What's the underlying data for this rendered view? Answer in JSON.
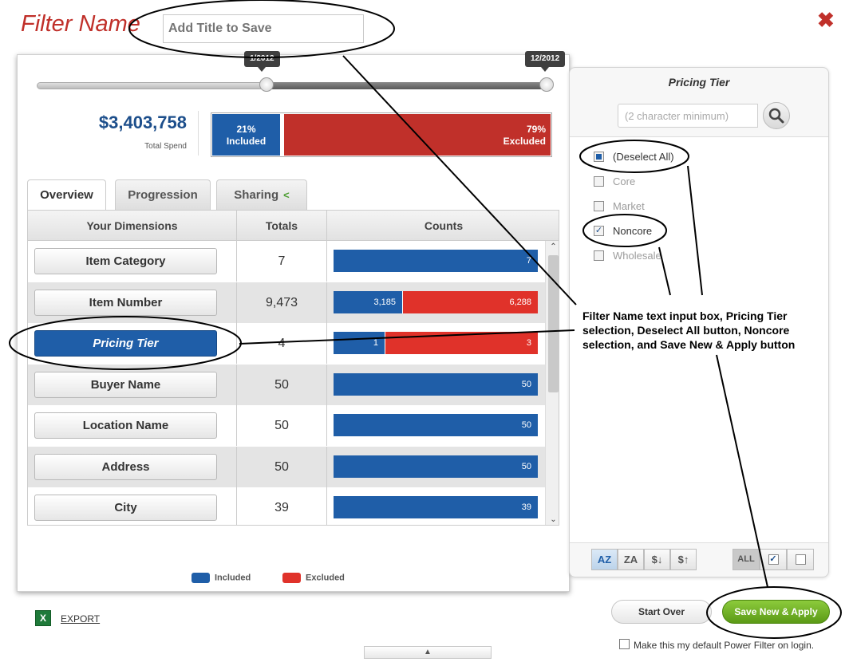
{
  "header": {
    "filter_name_label": "Filter Name",
    "title_placeholder": "Add Title to Save",
    "close_icon": "close-icon"
  },
  "slider": {
    "start_label": "1/2012",
    "end_label": "12/2012"
  },
  "summary": {
    "total_spend": "$3,403,758",
    "total_spend_label": "Total Spend",
    "included_pct": "21%",
    "included_label": "Included",
    "included_fraction": 0.21,
    "excluded_pct": "79%",
    "excluded_label": "Excluded"
  },
  "tabs": [
    {
      "label": "Overview",
      "active": true
    },
    {
      "label": "Progression",
      "active": false
    },
    {
      "label": "Sharing",
      "active": false,
      "icon": "share-icon"
    }
  ],
  "grid": {
    "headers": [
      "Your Dimensions",
      "Totals",
      "Counts"
    ],
    "rows": [
      {
        "dimension": "Item Category",
        "total": "7",
        "included": 7,
        "excluded": 0,
        "included_label": "7",
        "excluded_label": "",
        "selected": false
      },
      {
        "dimension": "Item Number",
        "total": "9,473",
        "included": 3185,
        "excluded": 6288,
        "included_label": "3,185",
        "excluded_label": "6,288",
        "selected": false
      },
      {
        "dimension": "Pricing Tier",
        "total": "4",
        "included": 1,
        "excluded": 3,
        "included_label": "1",
        "excluded_label": "3",
        "selected": true
      },
      {
        "dimension": "Buyer Name",
        "total": "50",
        "included": 50,
        "excluded": 0,
        "included_label": "50",
        "excluded_label": "",
        "selected": false
      },
      {
        "dimension": "Location Name",
        "total": "50",
        "included": 50,
        "excluded": 0,
        "included_label": "50",
        "excluded_label": "",
        "selected": false
      },
      {
        "dimension": "Address",
        "total": "50",
        "included": 50,
        "excluded": 0,
        "included_label": "50",
        "excluded_label": "",
        "selected": false
      },
      {
        "dimension": "City",
        "total": "39",
        "included": 39,
        "excluded": 0,
        "included_label": "39",
        "excluded_label": "",
        "selected": false
      }
    ]
  },
  "legend": {
    "included": "Included",
    "excluded": "Excluded",
    "included_color": "#1f5ea8",
    "excluded_color": "#e0322a"
  },
  "export": {
    "label": "EXPORT",
    "icon": "excel-icon"
  },
  "right_panel": {
    "title": "Pricing Tier",
    "search_placeholder": "(2 character minimum)",
    "search_icon": "magnifier-icon",
    "options": [
      {
        "label": "(Deselect All)",
        "state": "partial",
        "disabled": false
      },
      {
        "label": "Core",
        "state": "unchecked",
        "disabled": true
      },
      {
        "label": "Market",
        "state": "unchecked",
        "disabled": true
      },
      {
        "label": "Noncore",
        "state": "checked",
        "disabled": false
      },
      {
        "label": "Wholesale",
        "state": "unchecked",
        "disabled": true
      }
    ],
    "sort_buttons": [
      "AZ",
      "ZA",
      "$↓",
      "$↑"
    ],
    "select_all_label": "ALL"
  },
  "actions": {
    "start_over": "Start Over",
    "save_apply": "Save New & Apply",
    "default_checkbox_label": "Make this my default Power Filter on login."
  },
  "annotation": {
    "text": "Filter Name text input box, Pricing Tier selection, Deselect All button, Noncore selection, and Save New & Apply button"
  }
}
